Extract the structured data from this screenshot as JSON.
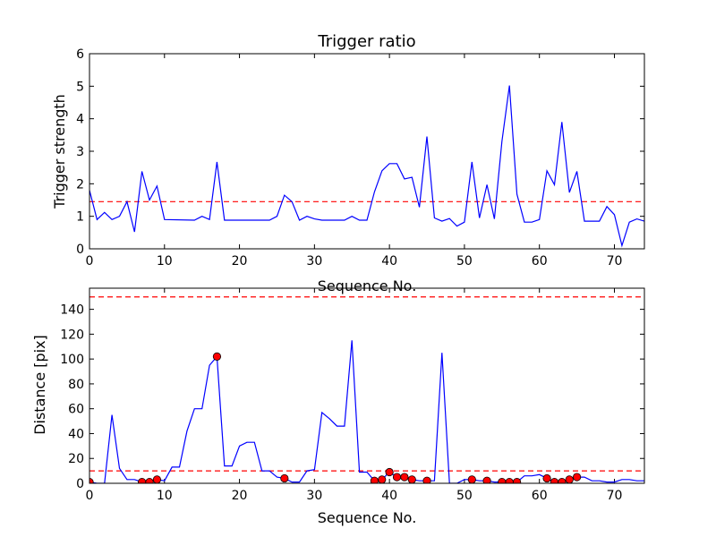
{
  "chart_data": [
    {
      "type": "line",
      "title": "Trigger ratio",
      "xlabel": "Sequence No.",
      "ylabel": "Trigger strength",
      "xlim": [
        0,
        74
      ],
      "ylim": [
        0,
        6
      ],
      "xticks": [
        0,
        10,
        20,
        30,
        40,
        50,
        60,
        70
      ],
      "yticks": [
        0,
        1,
        2,
        3,
        4,
        5,
        6
      ],
      "grid": false,
      "series": [
        {
          "color": "#0000ff",
          "style": "solid",
          "x": [
            0,
            1,
            2,
            3,
            4,
            5,
            6,
            7,
            8,
            9,
            10,
            14,
            15,
            16,
            17,
            18,
            24,
            25,
            26,
            27,
            28,
            29,
            30,
            31,
            32,
            33,
            34,
            35,
            36,
            37,
            38,
            39,
            40,
            41,
            42,
            43,
            44,
            45,
            46,
            47,
            48,
            49,
            50,
            51,
            52,
            53,
            54,
            55,
            56,
            57,
            58,
            59,
            60,
            61,
            62,
            63,
            64,
            65,
            66,
            67,
            68,
            69,
            70,
            71,
            72,
            73,
            74
          ],
          "y": [
            1.8,
            0.9,
            1.12,
            0.9,
            1.0,
            1.45,
            0.52,
            2.38,
            1.5,
            1.93,
            0.9,
            0.88,
            1.0,
            0.9,
            2.67,
            0.88,
            0.88,
            1.0,
            1.65,
            1.45,
            0.88,
            1.0,
            0.92,
            0.88,
            0.88,
            0.88,
            0.88,
            1.0,
            0.88,
            0.88,
            1.75,
            2.4,
            2.62,
            2.62,
            2.15,
            2.2,
            1.28,
            3.45,
            0.95,
            0.85,
            0.93,
            0.7,
            0.82,
            2.67,
            0.95,
            1.97,
            0.92,
            3.3,
            5.02,
            1.68,
            0.82,
            0.82,
            0.9,
            2.4,
            1.97,
            3.9,
            1.73,
            2.38,
            0.85,
            0.85,
            0.85,
            1.3,
            1.05,
            0.1,
            0.82,
            0.92,
            0.85
          ]
        }
      ],
      "reference_lines": [
        {
          "axis": "y",
          "value": 1.45,
          "color": "#ff0000",
          "style": "dashed"
        }
      ]
    },
    {
      "type": "line",
      "title": "",
      "xlabel": "Sequence No.",
      "ylabel": "Distance [pix]",
      "xlim": [
        0,
        74
      ],
      "ylim": [
        0,
        157
      ],
      "xticks": [
        0,
        10,
        20,
        30,
        40,
        50,
        60,
        70
      ],
      "yticks": [
        0,
        20,
        40,
        60,
        80,
        100,
        120,
        140
      ],
      "grid": false,
      "series": [
        {
          "color": "#0000ff",
          "style": "solid",
          "x": [
            0,
            1,
            2,
            3,
            4,
            5,
            6,
            7,
            8,
            9,
            10,
            11,
            12,
            13,
            14,
            15,
            16,
            17,
            18,
            19,
            20,
            21,
            22,
            23,
            24,
            25,
            26,
            27,
            28,
            29,
            30,
            31,
            32,
            33,
            34,
            35,
            36,
            37,
            38,
            39,
            40,
            41,
            42,
            43,
            44,
            45,
            46,
            47,
            48,
            49,
            50,
            51,
            52,
            53,
            54,
            55,
            56,
            57,
            58,
            59,
            60,
            61,
            62,
            63,
            64,
            65,
            66,
            67,
            68,
            69,
            70,
            71,
            72,
            73,
            74
          ],
          "y": [
            1,
            0,
            0,
            55,
            12,
            3,
            3,
            1,
            1,
            3,
            2,
            13,
            13,
            42,
            60,
            60,
            95,
            102,
            14,
            14,
            30,
            33,
            33,
            10,
            10,
            5,
            4,
            1,
            1,
            10,
            11,
            57,
            52,
            46,
            46,
            115,
            9,
            9,
            2,
            3,
            9,
            5,
            5,
            3,
            2,
            2,
            2,
            105,
            0,
            0,
            3,
            3,
            2,
            2,
            1,
            1,
            2,
            1,
            6,
            6,
            7,
            4,
            1,
            1,
            3,
            5,
            5,
            2,
            2,
            1,
            1,
            3,
            3,
            2,
            2
          ]
        },
        {
          "color": "#ff0000",
          "style": "markers",
          "x": [
            0,
            7,
            8,
            9,
            17,
            26,
            38,
            39,
            40,
            41,
            42,
            43,
            45,
            51,
            53,
            55,
            56,
            57,
            61,
            62,
            63,
            64,
            65
          ],
          "y": [
            1,
            1,
            1,
            3,
            102,
            4,
            2,
            3,
            9,
            5,
            5,
            3,
            2,
            3,
            2,
            1,
            1,
            1,
            4,
            1,
            1,
            3,
            5
          ]
        }
      ],
      "reference_lines": [
        {
          "axis": "y",
          "value": 150,
          "color": "#ff0000",
          "style": "dashed"
        },
        {
          "axis": "y",
          "value": 10,
          "color": "#ff0000",
          "style": "dashed"
        }
      ]
    }
  ]
}
